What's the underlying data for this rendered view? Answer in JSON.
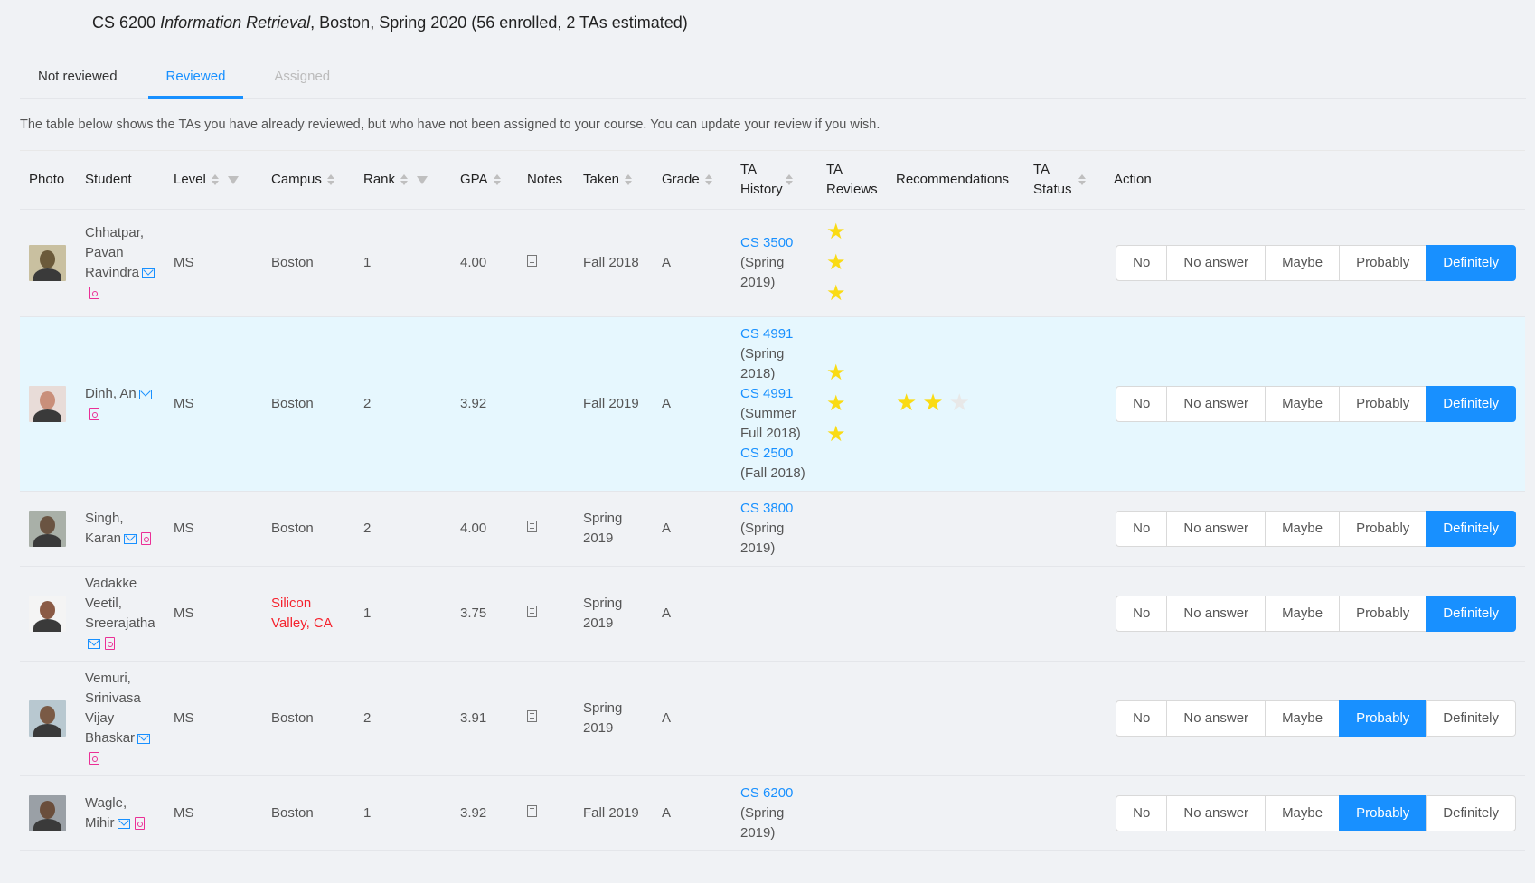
{
  "header": {
    "course_code": "CS 6200",
    "course_name": "Information Retrieval",
    "course_rest": ", Boston, Spring 2020 (56 enrolled, 2 TAs estimated)"
  },
  "tabs": [
    {
      "label": "Not reviewed",
      "state": "normal"
    },
    {
      "label": "Reviewed",
      "state": "active"
    },
    {
      "label": "Assigned",
      "state": "disabled"
    }
  ],
  "description": "The table below shows the TAs you have already reviewed, but who have not been assigned to your course. You can update your review if you wish.",
  "columns": [
    {
      "label": "Photo"
    },
    {
      "label": "Student"
    },
    {
      "label": "Level",
      "sort": true,
      "filter": true
    },
    {
      "label": "Campus",
      "sort": true
    },
    {
      "label": "Rank",
      "sort": true,
      "filter": true
    },
    {
      "label": "GPA",
      "sort": true
    },
    {
      "label": "Notes"
    },
    {
      "label": "Taken",
      "sort": true
    },
    {
      "label": "Grade",
      "sort": true
    },
    {
      "label": "TA History",
      "sort": true
    },
    {
      "label": "TA Reviews"
    },
    {
      "label": "Recommendations"
    },
    {
      "label": "TA Status",
      "sort": true
    },
    {
      "label": "Action"
    }
  ],
  "action_options": [
    "No",
    "No answer",
    "Maybe",
    "Probably",
    "Definitely"
  ],
  "colors": {
    "accent": "#1890ff",
    "star": "#fadb14",
    "highlight_row": "#e6f7fe",
    "alert": "#f5222d",
    "pdf": "#eb2f96"
  },
  "rows": [
    {
      "name": "Chhatpar, Pavan Ravindra",
      "level": "MS",
      "campus": "Boston",
      "campus_alert": false,
      "rank": "1",
      "gpa": "4.00",
      "has_notes": true,
      "taken": "Fall 2018",
      "grade": "A",
      "history": [
        {
          "course": "CS 3500",
          "term": "(Spring 2019)"
        }
      ],
      "ta_reviews": 3,
      "recommendations": null,
      "action": "Definitely",
      "skin": "#6b5a3a",
      "bg": "#c9c0a0"
    },
    {
      "name": "Dinh, An",
      "level": "MS",
      "campus": "Boston",
      "campus_alert": false,
      "rank": "2",
      "gpa": "3.92",
      "has_notes": false,
      "taken": "Fall 2019",
      "grade": "A",
      "history": [
        {
          "course": "CS 4991",
          "term": "(Spring 2018)"
        },
        {
          "course": "CS 4991",
          "term": "(Summer Full 2018)"
        },
        {
          "course": "CS 2500",
          "term": "(Fall 2018)"
        }
      ],
      "ta_reviews": 3,
      "recommendations": {
        "rating": 2,
        "max": 3
      },
      "action": "Definitely",
      "highlight": true,
      "skin": "#c98f7a",
      "bg": "#e8dcd8"
    },
    {
      "name": "Singh, Karan",
      "level": "MS",
      "campus": "Boston",
      "campus_alert": false,
      "rank": "2",
      "gpa": "4.00",
      "has_notes": true,
      "taken": "Spring 2019",
      "grade": "A",
      "history": [
        {
          "course": "CS 3800",
          "term": "(Spring 2019)"
        }
      ],
      "ta_reviews": 0,
      "recommendations": null,
      "action": "Definitely",
      "skin": "#6a5442",
      "bg": "#a9b0a8"
    },
    {
      "name": "Vadakke Veetil, Sreerajatha",
      "level": "MS",
      "campus": "Silicon Valley, CA",
      "campus_alert": true,
      "rank": "1",
      "gpa": "3.75",
      "has_notes": true,
      "taken": "Spring 2019",
      "grade": "A",
      "history": [],
      "ta_reviews": 0,
      "recommendations": null,
      "action": "Definitely",
      "skin": "#8a5a45",
      "bg": "#f4f4f4"
    },
    {
      "name": "Vemuri, Srinivasa Vijay Bhaskar",
      "level": "MS",
      "campus": "Boston",
      "campus_alert": false,
      "rank": "2",
      "gpa": "3.91",
      "has_notes": true,
      "taken": "Spring 2019",
      "grade": "A",
      "history": [],
      "ta_reviews": 0,
      "recommendations": null,
      "action": "Probably",
      "skin": "#7a5a45",
      "bg": "#b8c8d0"
    },
    {
      "name": "Wagle, Mihir",
      "level": "MS",
      "campus": "Boston",
      "campus_alert": false,
      "rank": "1",
      "gpa": "3.92",
      "has_notes": true,
      "taken": "Fall 2019",
      "grade": "A",
      "history": [
        {
          "course": "CS 6200",
          "term": "(Spring 2019)"
        }
      ],
      "ta_reviews": 0,
      "recommendations": null,
      "action": "Probably",
      "skin": "#6a4e3c",
      "bg": "#9aa0a6"
    }
  ]
}
